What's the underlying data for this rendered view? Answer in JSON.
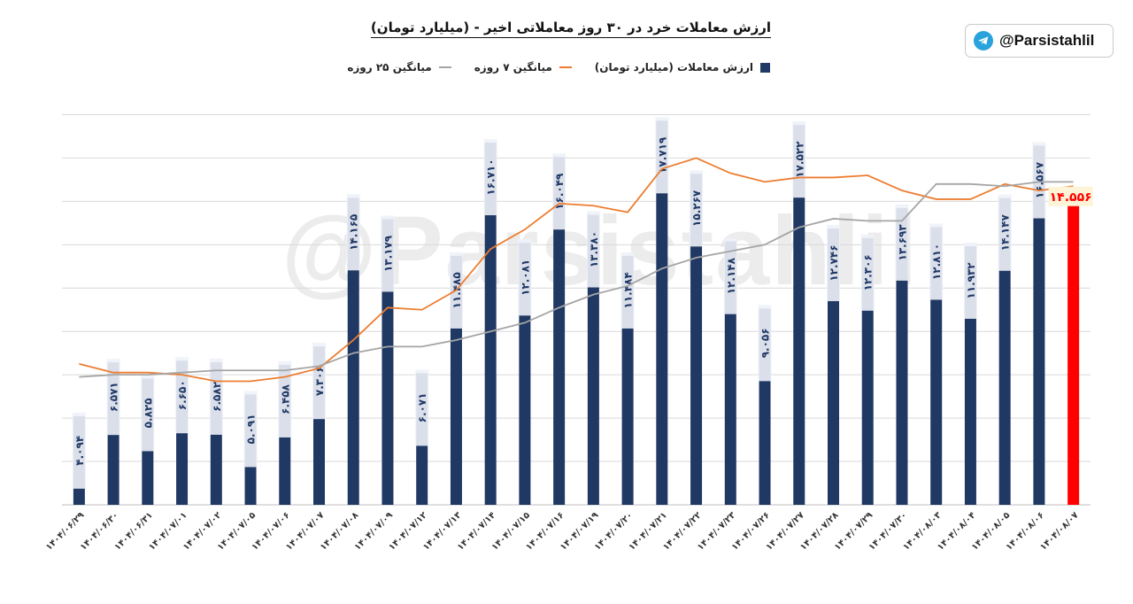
{
  "title": "ارزش معاملات خرد در ۳۰ روز معاملاتی اخیر - (میلیارد تومان)",
  "watermark": "@Parsistahlil",
  "badge": {
    "icon": "telegram-icon",
    "text": "@Parsistahlil"
  },
  "colors": {
    "bar": "#1f3864",
    "last_bar": "#ff0000",
    "ma7": "#ed7d31",
    "ma25": "#a5a5a5",
    "grid": "#d9d9d9"
  },
  "chart_data": {
    "type": "bar",
    "grid": true,
    "legend_position": "top",
    "ylim": [
      0,
      19
    ],
    "categories": [
      "۱۴۰۴/۰۶/۲۹",
      "۱۴۰۴/۰۶/۳۰",
      "۱۴۰۴/۰۶/۳۱",
      "۱۴۰۴/۰۷/۰۱",
      "۱۴۰۴/۰۷/۰۲",
      "۱۴۰۴/۰۷/۰۵",
      "۱۴۰۴/۰۷/۰۶",
      "۱۴۰۴/۰۷/۰۷",
      "۱۴۰۴/۰۷/۰۸",
      "۱۴۰۴/۰۷/۰۹",
      "۱۴۰۴/۰۷/۱۲",
      "۱۴۰۴/۰۷/۱۳",
      "۱۴۰۴/۰۷/۱۴",
      "۱۴۰۴/۰۷/۱۵",
      "۱۴۰۴/۰۷/۱۶",
      "۱۴۰۴/۰۷/۱۹",
      "۱۴۰۴/۰۷/۲۰",
      "۱۴۰۴/۰۷/۲۱",
      "۱۴۰۴/۰۷/۲۲",
      "۱۴۰۴/۰۷/۲۳",
      "۱۴۰۴/۰۷/۲۶",
      "۱۴۰۴/۰۷/۲۷",
      "۱۴۰۴/۰۷/۲۸",
      "۱۴۰۴/۰۷/۲۹",
      "۱۴۰۴/۰۷/۳۰",
      "۱۴۰۴/۰۸/۰۳",
      "۱۴۰۴/۰۸/۰۴",
      "۱۴۰۴/۰۸/۰۵",
      "۱۴۰۴/۰۸/۰۶",
      "۱۴۰۴/۰۸/۰۷"
    ],
    "series": [
      {
        "name": "ارزش معاملات (میلیارد تومان)",
        "kind": "bar",
        "values": [
          4.094,
          6.571,
          5.825,
          6.65,
          6.582,
          5.091,
          6.458,
          7.306,
          14.165,
          13.179,
          6.071,
          11.485,
          16.71,
          12.081,
          16.049,
          13.38,
          11.484,
          17.719,
          15.267,
          12.148,
          9.056,
          17.522,
          12.746,
          12.306,
          13.693,
          12.81,
          11.932,
          14.147,
          16.567,
          14.556
        ],
        "labels": [
          "۴.۰۹۴",
          "۶.۵۷۱",
          "۵.۸۲۵",
          "۶.۶۵۰",
          "۶.۵۸۲",
          "۵.۰۹۱",
          "۶.۴۵۸",
          "۷.۳۰۶",
          "۱۴.۱۶۵",
          "۱۳.۱۷۹",
          "۶.۰۷۱",
          "۱۱.۴۸۵",
          "۱۶.۷۱۰",
          "۱۲.۰۸۱",
          "۱۶.۰۴۹",
          "۱۳.۳۸۰",
          "۱۱.۴۸۴",
          "۱۷.۷۱۹",
          "۱۵.۲۶۷",
          "۱۲.۱۴۸",
          "۹.۰۵۶",
          "۱۷.۵۲۲",
          "۱۲.۷۴۶",
          "۱۲.۳۰۶",
          "۱۳.۶۹۳",
          "۱۲.۸۱۰",
          "۱۱.۹۳۲",
          "۱۴.۱۴۷",
          "۱۶.۵۶۷",
          "۱۴.۵۵۶"
        ]
      },
      {
        "name": "میانگین ۷ روزه",
        "kind": "line",
        "values": [
          6.5,
          6.1,
          6.1,
          6.0,
          5.7,
          5.7,
          5.9,
          6.3,
          7.6,
          9.1,
          9.0,
          9.9,
          11.8,
          12.7,
          13.9,
          13.8,
          13.5,
          15.5,
          16.0,
          15.3,
          14.9,
          15.1,
          15.1,
          15.2,
          14.5,
          14.1,
          14.1,
          14.8,
          14.5,
          14.7
        ]
      },
      {
        "name": "میانگین ۲۵ روزه",
        "kind": "line",
        "values": [
          5.9,
          6.0,
          6.0,
          6.1,
          6.2,
          6.2,
          6.2,
          6.4,
          7.0,
          7.3,
          7.3,
          7.6,
          8.0,
          8.4,
          9.1,
          9.7,
          10.1,
          10.9,
          11.4,
          11.7,
          12.0,
          12.8,
          13.2,
          13.1,
          13.1,
          14.8,
          14.8,
          14.7,
          14.9,
          14.9
        ]
      }
    ]
  }
}
